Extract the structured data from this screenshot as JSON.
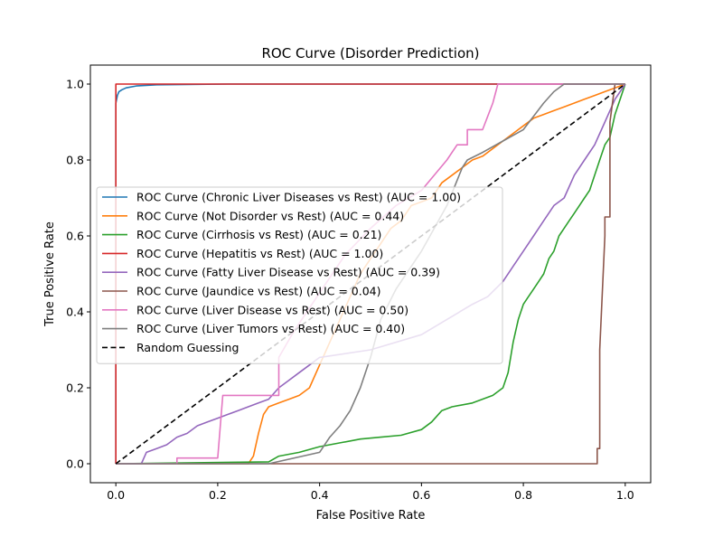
{
  "chart_data": {
    "type": "line",
    "title": "ROC Curve (Disorder Prediction)",
    "xlabel": "False Positive Rate",
    "ylabel": "True Positive Rate",
    "xlim": [
      -0.05,
      1.05
    ],
    "ylim": [
      -0.05,
      1.05
    ],
    "xticks": [
      "0.0",
      "0.2",
      "0.4",
      "0.6",
      "0.8",
      "1.0"
    ],
    "yticks": [
      "0.0",
      "0.2",
      "0.4",
      "0.6",
      "0.8",
      "1.0"
    ],
    "grid": false,
    "legend_position": "center-left",
    "series": [
      {
        "name": "ROC Curve (Chronic Liver Diseases vs Rest) (AUC = 1.00)",
        "color": "#1f77b4",
        "dashed": false,
        "x": [
          0,
          0,
          0.003,
          0.006,
          0.012,
          0.02,
          0.04,
          0.08,
          0.22,
          1
        ],
        "y": [
          0,
          0.95,
          0.97,
          0.98,
          0.985,
          0.99,
          0.995,
          0.998,
          1,
          1
        ]
      },
      {
        "name": "ROC Curve (Not Disorder vs Rest) (AUC = 0.44)",
        "color": "#ff7f0e",
        "dashed": false,
        "x": [
          0,
          0.26,
          0.27,
          0.28,
          0.29,
          0.3,
          0.32,
          0.34,
          0.36,
          0.38,
          0.4,
          0.42,
          0.44,
          0.46,
          0.48,
          0.5,
          0.52,
          0.54,
          0.56,
          0.58,
          0.6,
          0.62,
          0.64,
          0.66,
          0.68,
          0.7,
          0.72,
          0.74,
          0.76,
          0.78,
          0.8,
          0.82,
          0.84,
          0.86,
          0.88,
          0.9,
          0.92,
          0.94,
          0.96,
          0.98,
          1
        ],
        "y": [
          0,
          0,
          0.02,
          0.08,
          0.13,
          0.15,
          0.16,
          0.17,
          0.18,
          0.2,
          0.26,
          0.32,
          0.38,
          0.44,
          0.5,
          0.54,
          0.58,
          0.62,
          0.64,
          0.68,
          0.69,
          0.7,
          0.74,
          0.76,
          0.78,
          0.8,
          0.81,
          0.83,
          0.85,
          0.87,
          0.89,
          0.91,
          0.92,
          0.93,
          0.94,
          0.95,
          0.96,
          0.97,
          0.98,
          0.99,
          1
        ]
      },
      {
        "name": "ROC Curve (Cirrhosis vs Rest) (AUC = 0.21)",
        "color": "#2ca02c",
        "dashed": false,
        "x": [
          0,
          0.3,
          0.32,
          0.36,
          0.4,
          0.44,
          0.48,
          0.52,
          0.56,
          0.6,
          0.62,
          0.64,
          0.66,
          0.7,
          0.74,
          0.76,
          0.77,
          0.78,
          0.79,
          0.8,
          0.81,
          0.82,
          0.83,
          0.84,
          0.85,
          0.86,
          0.87,
          0.88,
          0.89,
          0.9,
          0.91,
          0.92,
          0.93,
          0.94,
          0.95,
          0.96,
          0.97,
          0.98,
          0.99,
          1
        ],
        "y": [
          0,
          0.005,
          0.02,
          0.03,
          0.045,
          0.055,
          0.065,
          0.07,
          0.075,
          0.09,
          0.11,
          0.14,
          0.15,
          0.16,
          0.18,
          0.2,
          0.24,
          0.32,
          0.38,
          0.42,
          0.44,
          0.46,
          0.48,
          0.5,
          0.54,
          0.56,
          0.6,
          0.62,
          0.64,
          0.66,
          0.68,
          0.7,
          0.72,
          0.76,
          0.8,
          0.84,
          0.86,
          0.92,
          0.96,
          1
        ]
      },
      {
        "name": "ROC Curve (Hepatitis vs Rest) (AUC = 1.00)",
        "color": "#d62728",
        "dashed": false,
        "x": [
          0,
          0,
          0.75,
          1
        ],
        "y": [
          0,
          1,
          1,
          1
        ]
      },
      {
        "name": "ROC Curve (Fatty Liver Disease vs Rest) (AUC = 0.39)",
        "color": "#9467bd",
        "dashed": false,
        "x": [
          0,
          0.05,
          0.06,
          0.08,
          0.1,
          0.12,
          0.14,
          0.16,
          0.18,
          0.2,
          0.22,
          0.24,
          0.26,
          0.28,
          0.3,
          0.32,
          0.34,
          0.36,
          0.38,
          0.4,
          0.5,
          0.6,
          0.65,
          0.7,
          0.73,
          0.76,
          0.78,
          0.8,
          0.82,
          0.84,
          0.86,
          0.88,
          0.9,
          0.92,
          0.94,
          0.96,
          0.98,
          1
        ],
        "y": [
          0,
          0,
          0.03,
          0.04,
          0.05,
          0.07,
          0.08,
          0.1,
          0.11,
          0.12,
          0.13,
          0.14,
          0.15,
          0.16,
          0.17,
          0.2,
          0.22,
          0.24,
          0.26,
          0.28,
          0.3,
          0.34,
          0.38,
          0.42,
          0.44,
          0.48,
          0.52,
          0.56,
          0.6,
          0.64,
          0.68,
          0.7,
          0.76,
          0.8,
          0.84,
          0.9,
          0.96,
          1
        ]
      },
      {
        "name": "ROC Curve (Jaundice vs Rest) (AUC = 0.04)",
        "color": "#8c564b",
        "dashed": false,
        "x": [
          0,
          0.945,
          0.945,
          0.95,
          0.95,
          0.96,
          0.96,
          0.97,
          0.97,
          0.98,
          1
        ],
        "y": [
          0,
          0,
          0.04,
          0.04,
          0.3,
          0.6,
          0.65,
          0.65,
          0.9,
          1,
          1
        ]
      },
      {
        "name": "ROC Curve (Liver Disease vs Rest) (AUC = 0.50)",
        "color": "#e377c2",
        "dashed": false,
        "x": [
          0,
          0.12,
          0.12,
          0.2,
          0.21,
          0.22,
          0.32,
          0.32,
          0.35,
          0.4,
          0.45,
          0.5,
          0.55,
          0.6,
          0.65,
          0.67,
          0.69,
          0.69,
          0.72,
          0.74,
          0.75,
          1
        ],
        "y": [
          0,
          0,
          0.015,
          0.015,
          0.18,
          0.18,
          0.18,
          0.28,
          0.35,
          0.45,
          0.55,
          0.62,
          0.68,
          0.72,
          0.8,
          0.84,
          0.84,
          0.88,
          0.88,
          0.95,
          1,
          1
        ]
      },
      {
        "name": "ROC Curve (Liver Tumors vs Rest) (AUC = 0.40)",
        "color": "#7f7f7f",
        "dashed": false,
        "x": [
          0,
          0.3,
          0.4,
          0.42,
          0.44,
          0.46,
          0.48,
          0.5,
          0.52,
          0.55,
          0.6,
          0.65,
          0.68,
          0.69,
          0.72,
          0.76,
          0.8,
          0.84,
          0.86,
          0.88,
          0.9,
          1
        ],
        "y": [
          0,
          0,
          0.03,
          0.07,
          0.1,
          0.14,
          0.2,
          0.28,
          0.38,
          0.46,
          0.56,
          0.68,
          0.78,
          0.8,
          0.82,
          0.85,
          0.88,
          0.95,
          0.98,
          1,
          1,
          1
        ]
      },
      {
        "name": "Random Guessing",
        "color": "#000000",
        "dashed": true,
        "x": [
          0,
          1
        ],
        "y": [
          0,
          1
        ]
      }
    ]
  }
}
